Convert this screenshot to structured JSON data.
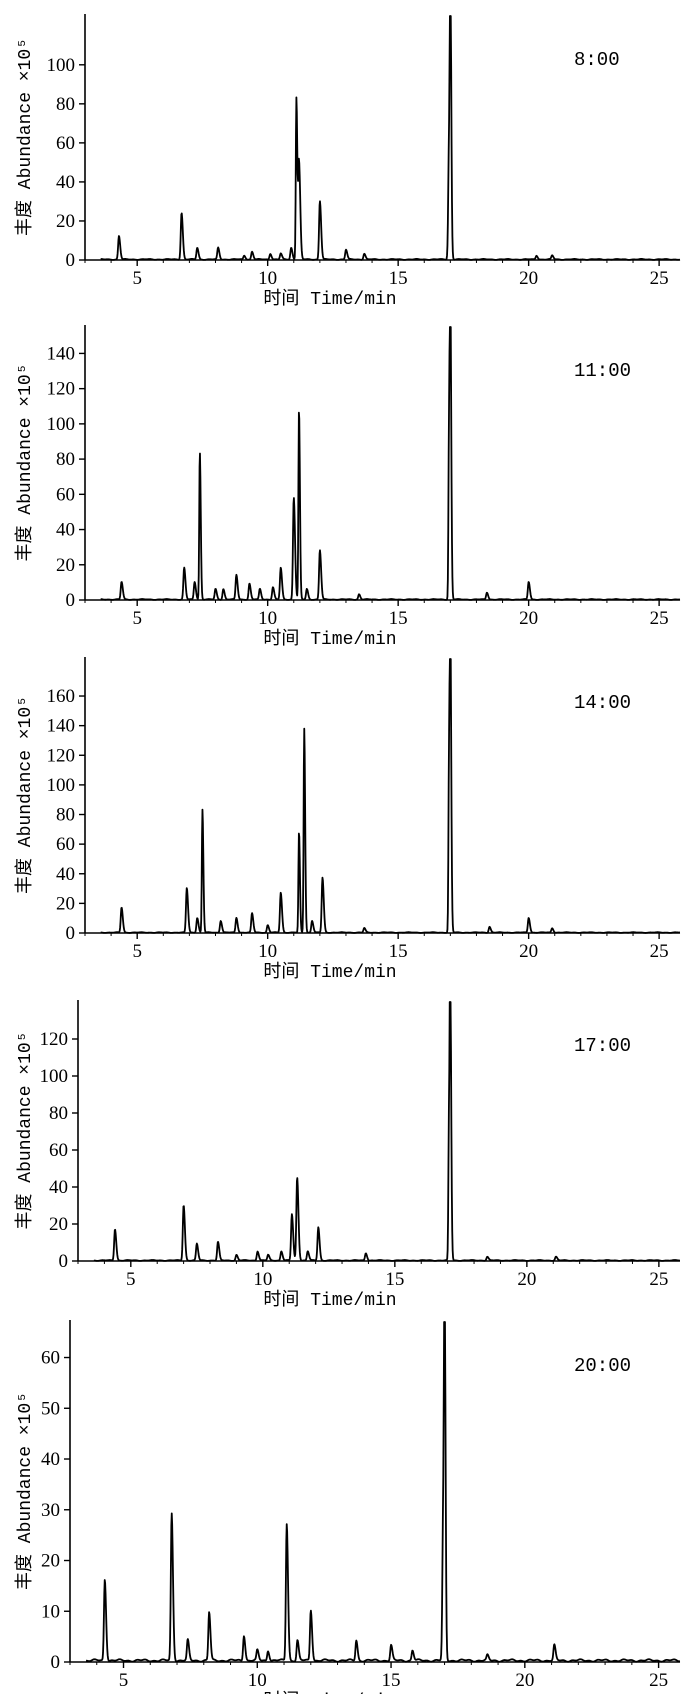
{
  "chart_data": [
    {
      "type": "line",
      "label": "8:00",
      "xlabel": "时间 Time/min",
      "ylabel": "丰度 Abundance ×10⁵",
      "xlim": [
        3,
        25.8
      ],
      "ylim": [
        0,
        125
      ],
      "xticks": [
        5,
        10,
        15,
        20,
        25
      ],
      "yticks": [
        0,
        20,
        40,
        60,
        80,
        100
      ],
      "grid": false,
      "peaks": [
        {
          "x": 4.3,
          "y": 12
        },
        {
          "x": 6.7,
          "y": 24
        },
        {
          "x": 7.3,
          "y": 6
        },
        {
          "x": 8.1,
          "y": 6
        },
        {
          "x": 9.1,
          "y": 2
        },
        {
          "x": 9.4,
          "y": 4
        },
        {
          "x": 10.1,
          "y": 3
        },
        {
          "x": 10.5,
          "y": 3
        },
        {
          "x": 10.9,
          "y": 6
        },
        {
          "x": 11.1,
          "y": 83
        },
        {
          "x": 11.2,
          "y": 50
        },
        {
          "x": 12.0,
          "y": 30
        },
        {
          "x": 13.0,
          "y": 5
        },
        {
          "x": 13.7,
          "y": 3
        },
        {
          "x": 17.0,
          "y": 125
        },
        {
          "x": 16.95,
          "y": 60
        },
        {
          "x": 20.3,
          "y": 2
        },
        {
          "x": 20.9,
          "y": 2
        }
      ]
    },
    {
      "type": "line",
      "label": "11:00",
      "xlabel": "时间 Time/min",
      "ylabel": "丰度 Abundance ×10⁵",
      "xlim": [
        3,
        25.8
      ],
      "ylim": [
        0,
        155
      ],
      "xticks": [
        5,
        10,
        15,
        20,
        25
      ],
      "yticks": [
        0,
        20,
        40,
        60,
        80,
        100,
        120,
        140
      ],
      "grid": false,
      "peaks": [
        {
          "x": 4.4,
          "y": 10
        },
        {
          "x": 6.8,
          "y": 18
        },
        {
          "x": 7.2,
          "y": 10
        },
        {
          "x": 7.4,
          "y": 84
        },
        {
          "x": 8.0,
          "y": 6
        },
        {
          "x": 8.3,
          "y": 6
        },
        {
          "x": 8.8,
          "y": 14
        },
        {
          "x": 9.3,
          "y": 9
        },
        {
          "x": 9.7,
          "y": 6
        },
        {
          "x": 10.2,
          "y": 7
        },
        {
          "x": 10.5,
          "y": 18
        },
        {
          "x": 11.0,
          "y": 58
        },
        {
          "x": 11.2,
          "y": 108
        },
        {
          "x": 11.5,
          "y": 6
        },
        {
          "x": 12.0,
          "y": 28
        },
        {
          "x": 13.5,
          "y": 3
        },
        {
          "x": 17.0,
          "y": 155
        },
        {
          "x": 16.95,
          "y": 100
        },
        {
          "x": 18.4,
          "y": 4
        },
        {
          "x": 20.0,
          "y": 10
        }
      ]
    },
    {
      "type": "line",
      "label": "14:00",
      "xlabel": "时间 Time/min",
      "ylabel": "丰度 Abundance ×10⁵",
      "xlim": [
        3,
        25.8
      ],
      "ylim": [
        0,
        185
      ],
      "xticks": [
        5,
        10,
        15,
        20,
        25
      ],
      "yticks": [
        0,
        20,
        40,
        60,
        80,
        100,
        120,
        140,
        160
      ],
      "grid": false,
      "peaks": [
        {
          "x": 4.4,
          "y": 17
        },
        {
          "x": 6.9,
          "y": 30
        },
        {
          "x": 7.3,
          "y": 10
        },
        {
          "x": 7.5,
          "y": 83
        },
        {
          "x": 8.2,
          "y": 8
        },
        {
          "x": 8.8,
          "y": 10
        },
        {
          "x": 9.4,
          "y": 13
        },
        {
          "x": 10.0,
          "y": 5
        },
        {
          "x": 10.5,
          "y": 27
        },
        {
          "x": 11.2,
          "y": 68
        },
        {
          "x": 11.4,
          "y": 138
        },
        {
          "x": 11.7,
          "y": 8
        },
        {
          "x": 12.1,
          "y": 37
        },
        {
          "x": 13.7,
          "y": 3
        },
        {
          "x": 17.0,
          "y": 183
        },
        {
          "x": 16.95,
          "y": 120
        },
        {
          "x": 18.5,
          "y": 4
        },
        {
          "x": 20.0,
          "y": 10
        },
        {
          "x": 20.9,
          "y": 3
        }
      ]
    },
    {
      "type": "line",
      "label": "17:00",
      "xlabel": "时间 Time/min",
      "ylabel": "丰度 Abundance ×10⁵",
      "xlim": [
        3,
        25.8
      ],
      "ylim": [
        0,
        140
      ],
      "xticks": [
        5,
        10,
        15,
        20,
        25
      ],
      "yticks": [
        0,
        20,
        40,
        60,
        80,
        100,
        120
      ],
      "grid": false,
      "peaks": [
        {
          "x": 4.4,
          "y": 17
        },
        {
          "x": 7.0,
          "y": 30
        },
        {
          "x": 7.5,
          "y": 9
        },
        {
          "x": 8.3,
          "y": 10
        },
        {
          "x": 9.0,
          "y": 3
        },
        {
          "x": 9.8,
          "y": 5
        },
        {
          "x": 10.2,
          "y": 3
        },
        {
          "x": 10.7,
          "y": 5
        },
        {
          "x": 11.1,
          "y": 25
        },
        {
          "x": 11.3,
          "y": 45
        },
        {
          "x": 11.7,
          "y": 5
        },
        {
          "x": 12.1,
          "y": 18
        },
        {
          "x": 13.9,
          "y": 4
        },
        {
          "x": 17.1,
          "y": 140
        },
        {
          "x": 17.05,
          "y": 75
        },
        {
          "x": 18.5,
          "y": 2
        },
        {
          "x": 21.1,
          "y": 2
        }
      ]
    },
    {
      "type": "line",
      "label": "20:00",
      "xlabel": "时间 Time/min",
      "ylabel": "丰度 Abundance ×10⁵",
      "xlim": [
        3,
        25.8
      ],
      "ylim": [
        0,
        67
      ],
      "xticks": [
        5,
        10,
        15,
        20,
        25
      ],
      "yticks": [
        0,
        10,
        20,
        30,
        40,
        50,
        60
      ],
      "grid": false,
      "peaks": [
        {
          "x": 4.3,
          "y": 16
        },
        {
          "x": 6.8,
          "y": 29
        },
        {
          "x": 7.4,
          "y": 4
        },
        {
          "x": 8.2,
          "y": 9.5
        },
        {
          "x": 9.5,
          "y": 5
        },
        {
          "x": 10.0,
          "y": 2
        },
        {
          "x": 10.4,
          "y": 2
        },
        {
          "x": 11.1,
          "y": 27
        },
        {
          "x": 11.5,
          "y": 4
        },
        {
          "x": 12.0,
          "y": 10
        },
        {
          "x": 13.7,
          "y": 4
        },
        {
          "x": 15.0,
          "y": 3
        },
        {
          "x": 15.8,
          "y": 2
        },
        {
          "x": 17.0,
          "y": 66
        },
        {
          "x": 16.95,
          "y": 30
        },
        {
          "x": 18.6,
          "y": 1
        },
        {
          "x": 21.1,
          "y": 3
        }
      ]
    }
  ]
}
